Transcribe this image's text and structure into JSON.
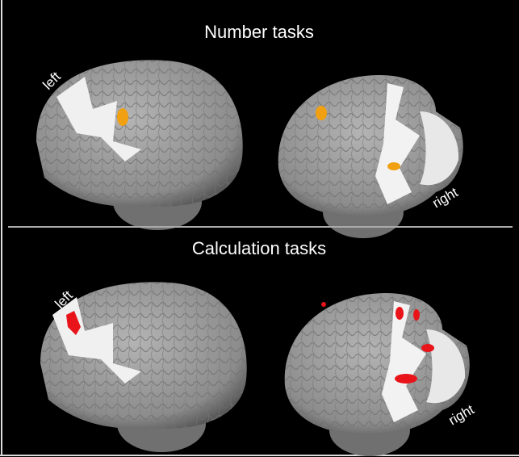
{
  "panels": [
    {
      "title": "Number tasks",
      "left_label": "left",
      "right_label": "right"
    },
    {
      "title": "Calculation tasks",
      "left_label": "left",
      "right_label": "right"
    }
  ]
}
